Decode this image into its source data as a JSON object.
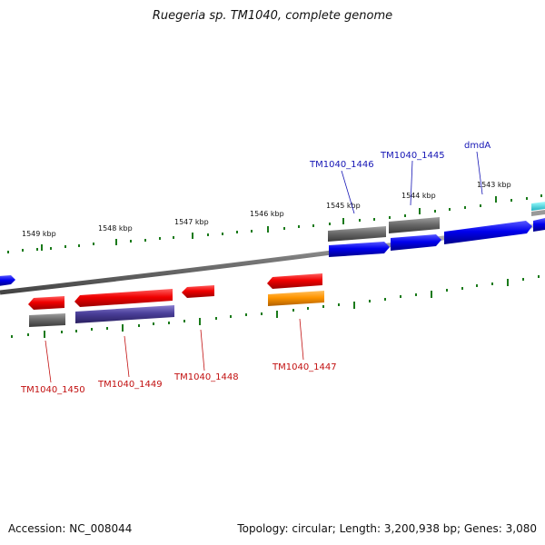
{
  "header": {
    "title": "Ruegeria sp. TM1040, complete genome"
  },
  "footer": {
    "accession": "Accession: NC_008044",
    "summary": "Topology: circular; Length: 3,200,938 bp; Genes: 3,080"
  },
  "scale": {
    "tick_labels": [
      "1549 kbp",
      "1548 kbp",
      "1547 kbp",
      "1546 kbp",
      "1545 kbp",
      "1544 kbp",
      "1543 kbp"
    ]
  },
  "genes": {
    "forward": [
      {
        "label": "TM1040_1446",
        "color": "#0000dd",
        "pair_color": "#666666"
      },
      {
        "label": "TM1040_1445",
        "color": "#0000dd",
        "pair_color": "#666666"
      },
      {
        "label": "dmdA",
        "color": "#0000dd",
        "pair_color": "#666666"
      }
    ],
    "reverse": [
      {
        "label": "TM1040_1450",
        "color": "#e00000",
        "pair_color": "#666666"
      },
      {
        "label": "TM1040_1449",
        "color": "#e00000",
        "pair_color": "#4a3f8f"
      },
      {
        "label": "TM1040_1448",
        "color": "#e00000"
      },
      {
        "label": "TM1040_1447",
        "color": "#e00000",
        "pair_color": "#f09010"
      }
    ]
  },
  "colors": {
    "backbone": "#888888",
    "tick": "#1a7a1a",
    "forward_label": "#1515b5",
    "reverse_label": "#c21010",
    "edge_feature": "#33dddd"
  }
}
